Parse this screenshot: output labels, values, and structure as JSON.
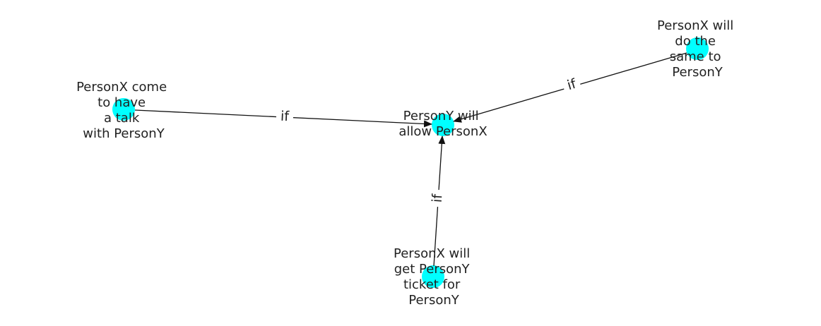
{
  "graph": {
    "node_color": "#00ffff",
    "edge_color": "#111111",
    "nodes": [
      {
        "id": "center",
        "label_lines": [
          "PersonY will",
          "allow PersonX"
        ]
      },
      {
        "id": "left",
        "label_lines": [
          "PersonX come",
          "to have",
          "a talk",
          "with PersonY"
        ]
      },
      {
        "id": "top-right",
        "label_lines": [
          "PersonX will",
          "do the",
          "same to",
          "PersonY"
        ]
      },
      {
        "id": "bottom",
        "label_lines": [
          "PersonX will",
          "get PersonY",
          "ticket for",
          "PersonY"
        ]
      }
    ],
    "edges": [
      {
        "from": "left",
        "to": "center",
        "label": "if"
      },
      {
        "from": "top-right",
        "to": "center",
        "label": "if"
      },
      {
        "from": "bottom",
        "to": "center",
        "label": "if"
      }
    ]
  }
}
